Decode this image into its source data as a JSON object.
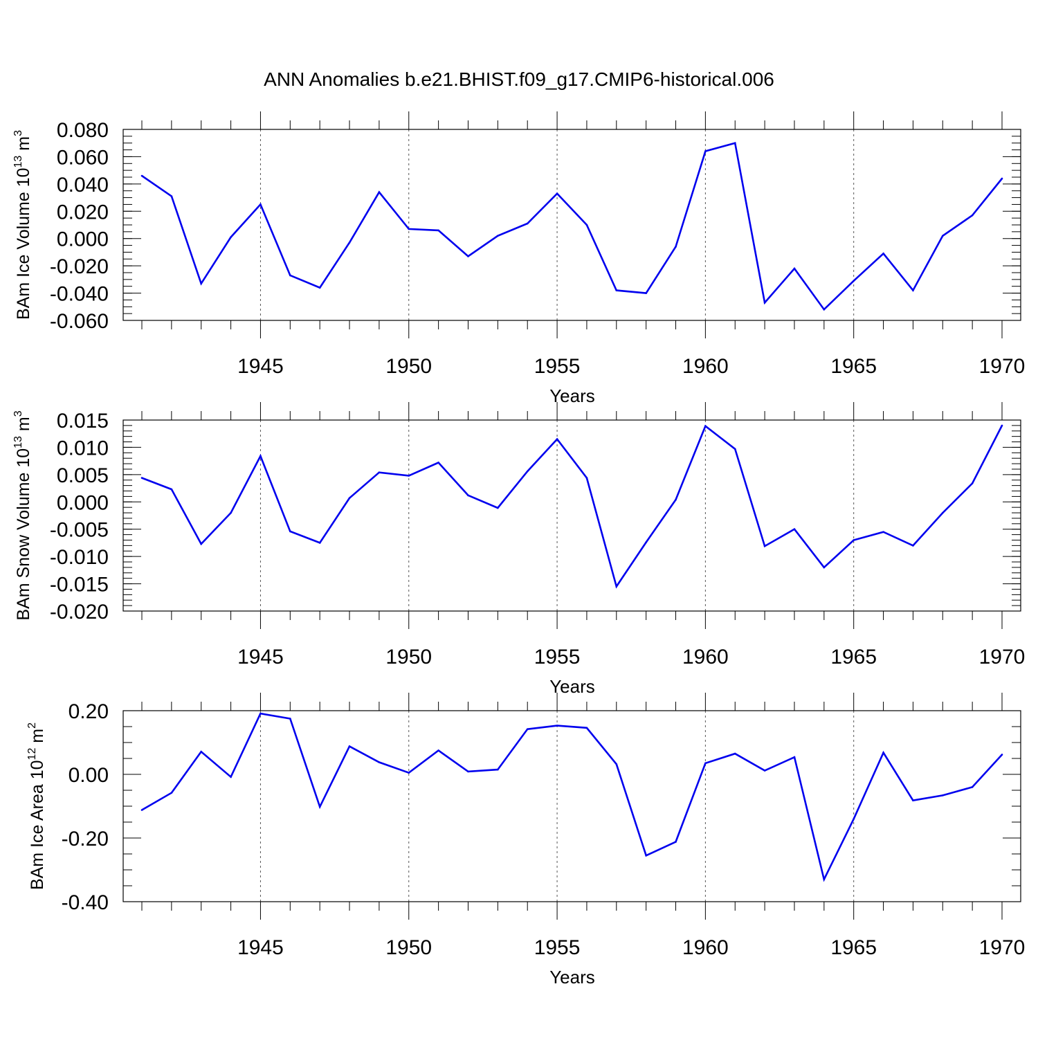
{
  "title": "ANN Anomalies b.e21.BHIST.f09_g17.CMIP6-historical.006",
  "line_color": "#0000ee",
  "chart_data": [
    {
      "type": "line",
      "ylabel": "BAm Ice Volume 10",
      "ylabel_exp": "13",
      "ylabel_unit": " m",
      "ylabel_unit_exp": "3",
      "xlabel": "Years",
      "xlim": [
        1941,
        1970
      ],
      "ylim": [
        -0.06,
        0.08
      ],
      "yticks": [
        -0.06,
        -0.04,
        -0.02,
        0.0,
        0.02,
        0.04,
        0.06,
        0.08
      ],
      "ytick_labels": [
        "-0.060",
        "-0.040",
        "-0.020",
        "0.000",
        "0.020",
        "0.040",
        "0.060",
        "0.080"
      ],
      "y_minor_step": 0.005,
      "xticks": [
        1945,
        1950,
        1955,
        1960,
        1965,
        1970
      ],
      "xtick_labels": [
        "1945",
        "1950",
        "1955",
        "1960",
        "1965",
        "1970"
      ],
      "grid": "vertical dashed at major x ticks",
      "x": [
        1941,
        1942,
        1943,
        1944,
        1945,
        1946,
        1947,
        1948,
        1949,
        1950,
        1951,
        1952,
        1953,
        1954,
        1955,
        1956,
        1957,
        1958,
        1959,
        1960,
        1961,
        1962,
        1963,
        1964,
        1965,
        1966,
        1967,
        1968,
        1969,
        1970
      ],
      "values": [
        0.046,
        0.031,
        -0.033,
        0.001,
        0.025,
        -0.027,
        -0.036,
        -0.003,
        0.034,
        0.007,
        0.006,
        -0.013,
        0.002,
        0.011,
        0.033,
        0.01,
        -0.038,
        -0.04,
        -0.006,
        0.064,
        0.07,
        -0.047,
        -0.022,
        -0.052,
        -0.031,
        -0.011,
        -0.038,
        0.002,
        0.017,
        0.044
      ]
    },
    {
      "type": "line",
      "ylabel": "BAm Snow Volume 10",
      "ylabel_exp": "13",
      "ylabel_unit": " m",
      "ylabel_unit_exp": "3",
      "xlabel": "Years",
      "xlim": [
        1941,
        1970
      ],
      "ylim": [
        -0.02,
        0.015
      ],
      "yticks": [
        -0.02,
        -0.015,
        -0.01,
        -0.005,
        0.0,
        0.005,
        0.01,
        0.015
      ],
      "ytick_labels": [
        "-0.020",
        "-0.015",
        "-0.010",
        "-0.005",
        "0.000",
        "0.005",
        "0.010",
        "0.015"
      ],
      "y_minor_step": 0.001,
      "xticks": [
        1945,
        1950,
        1955,
        1960,
        1965,
        1970
      ],
      "xtick_labels": [
        "1945",
        "1950",
        "1955",
        "1960",
        "1965",
        "1970"
      ],
      "grid": "vertical dashed at major x ticks",
      "x": [
        1941,
        1942,
        1943,
        1944,
        1945,
        1946,
        1947,
        1948,
        1949,
        1950,
        1951,
        1952,
        1953,
        1954,
        1955,
        1956,
        1957,
        1958,
        1959,
        1960,
        1961,
        1962,
        1963,
        1964,
        1965,
        1966,
        1967,
        1968,
        1969,
        1970
      ],
      "values": [
        0.0044,
        0.0023,
        -0.0077,
        -0.002,
        0.0084,
        -0.0054,
        -0.0075,
        0.0007,
        0.0054,
        0.0048,
        0.0072,
        0.0012,
        -0.0011,
        0.0056,
        0.0115,
        0.0044,
        -0.0155,
        -0.0074,
        0.0004,
        0.0139,
        0.0097,
        -0.0081,
        -0.005,
        -0.012,
        -0.007,
        -0.0055,
        -0.008,
        -0.002,
        0.0034,
        0.014
      ]
    },
    {
      "type": "line",
      "ylabel": "BAm Ice Area 10",
      "ylabel_exp": "12",
      "ylabel_unit": " m",
      "ylabel_unit_exp": "2",
      "xlabel": "Years",
      "xlim": [
        1941,
        1970
      ],
      "ylim": [
        -0.4,
        0.2
      ],
      "yticks": [
        -0.4,
        -0.2,
        0.0,
        0.2
      ],
      "ytick_labels": [
        "-0.40",
        "-0.20",
        "0.00",
        "0.20"
      ],
      "y_minor_step": 0.05,
      "xticks": [
        1945,
        1950,
        1955,
        1960,
        1965,
        1970
      ],
      "xtick_labels": [
        "1945",
        "1950",
        "1955",
        "1960",
        "1965",
        "1970"
      ],
      "grid": "vertical dashed at major x ticks",
      "x": [
        1941,
        1942,
        1943,
        1944,
        1945,
        1946,
        1947,
        1948,
        1949,
        1950,
        1951,
        1952,
        1953,
        1954,
        1955,
        1956,
        1957,
        1958,
        1959,
        1960,
        1961,
        1962,
        1963,
        1964,
        1965,
        1966,
        1967,
        1968,
        1969,
        1970
      ],
      "values": [
        -0.112,
        -0.058,
        0.071,
        -0.008,
        0.191,
        0.175,
        -0.102,
        0.088,
        0.038,
        0.005,
        0.075,
        0.009,
        0.015,
        0.142,
        0.153,
        0.146,
        0.032,
        -0.255,
        -0.212,
        0.035,
        0.065,
        0.012,
        0.054,
        -0.33,
        -0.14,
        0.068,
        -0.082,
        -0.066,
        -0.04,
        0.062
      ]
    }
  ]
}
